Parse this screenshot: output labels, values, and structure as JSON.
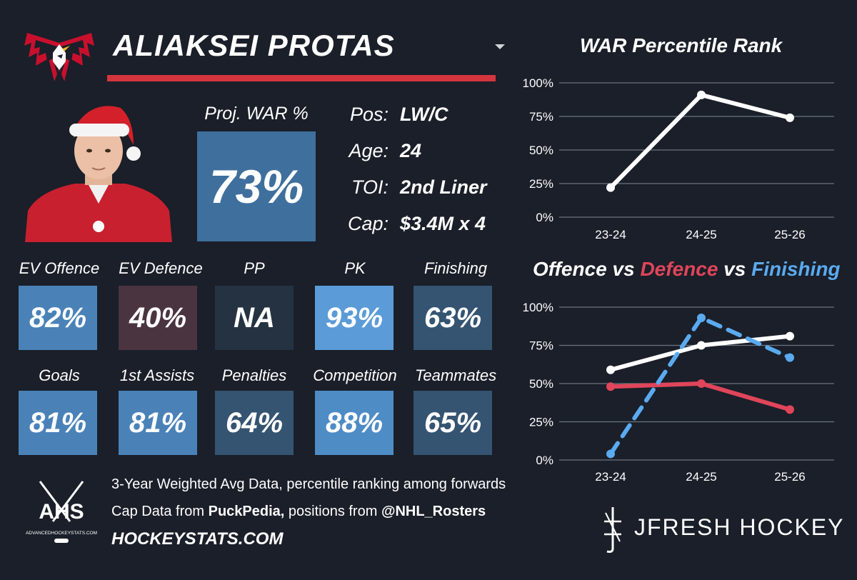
{
  "player": {
    "name": "ALIAKSEI PROTAS"
  },
  "proj_war": {
    "label": "Proj. WAR %",
    "value": "73%"
  },
  "info": [
    {
      "label": "Pos:",
      "value": "LW/C"
    },
    {
      "label": "Age:",
      "value": "24"
    },
    {
      "label": "TOI:",
      "value": "2nd Liner"
    },
    {
      "label": "Cap:",
      "value": "$3.4M x 4"
    }
  ],
  "tiles_row1": [
    {
      "label": "EV Offence",
      "value": "82%",
      "color": "#4a82b8"
    },
    {
      "label": "EV Defence",
      "value": "40%",
      "color": "#4a3440"
    },
    {
      "label": "PP",
      "value": "NA",
      "color": "#253242"
    },
    {
      "label": "PK",
      "value": "93%",
      "color": "#5b9bd8"
    },
    {
      "label": "Finishing",
      "value": "63%",
      "color": "#355472"
    }
  ],
  "tiles_row2": [
    {
      "label": "Goals",
      "value": "81%",
      "color": "#4a82b8"
    },
    {
      "label": "1st Assists",
      "value": "81%",
      "color": "#4a82b8"
    },
    {
      "label": "Penalties",
      "value": "64%",
      "color": "#355472"
    },
    {
      "label": "Competition",
      "value": "88%",
      "color": "#4e8cc6"
    },
    {
      "label": "Teammates",
      "value": "65%",
      "color": "#355472"
    }
  ],
  "footer": {
    "line1": "3-Year Weighted Avg Data, percentile ranking among forwards",
    "line2_pre": "Cap Data from ",
    "line2_bold1": "PuckPedia,",
    "line2_mid": " positions from ",
    "line2_bold2": "@NHL_Rosters",
    "site": "HOCKEYSTATS.COM",
    "ahs_logo_text": "AHS",
    "ahs_logo_sub": "ADVANCEDHOCKEYSTATS.COM",
    "brand": "JFRESH HOCKEY"
  },
  "colors": {
    "accent_red": "#d4353d",
    "offence": "#ffffff",
    "defence": "#e0455a",
    "finishing": "#5aaaf0",
    "background": "#1a1f29"
  },
  "chart_data": [
    {
      "type": "line",
      "title": "WAR Percentile Rank",
      "categories": [
        "23-24",
        "24-25",
        "25-26"
      ],
      "y_ticks": [
        "100%",
        "75%",
        "50%",
        "25%",
        "0%"
      ],
      "ylim": [
        0,
        100
      ],
      "series": [
        {
          "values": [
            22,
            91,
            74
          ],
          "color": "#ffffff",
          "dashed": false
        }
      ]
    },
    {
      "type": "line",
      "title_parts": [
        {
          "text": "Offence",
          "color": "#ffffff"
        },
        {
          "text": " vs ",
          "color": "#ffffff"
        },
        {
          "text": "Defence",
          "color": "#e0455a"
        },
        {
          "text": " vs ",
          "color": "#ffffff"
        },
        {
          "text": "Finishing",
          "color": "#5aaaf0"
        }
      ],
      "categories": [
        "23-24",
        "24-25",
        "25-26"
      ],
      "y_ticks": [
        "100%",
        "75%",
        "50%",
        "25%",
        "0%"
      ],
      "ylim": [
        0,
        100
      ],
      "series": [
        {
          "name": "Offence",
          "values": [
            59,
            75,
            81
          ],
          "color": "#ffffff",
          "dashed": false
        },
        {
          "name": "Defence",
          "values": [
            48,
            50,
            33
          ],
          "color": "#e0455a",
          "dashed": false
        },
        {
          "name": "Finishing",
          "values": [
            4,
            93,
            67
          ],
          "color": "#5aaaf0",
          "dashed": true
        }
      ]
    }
  ]
}
